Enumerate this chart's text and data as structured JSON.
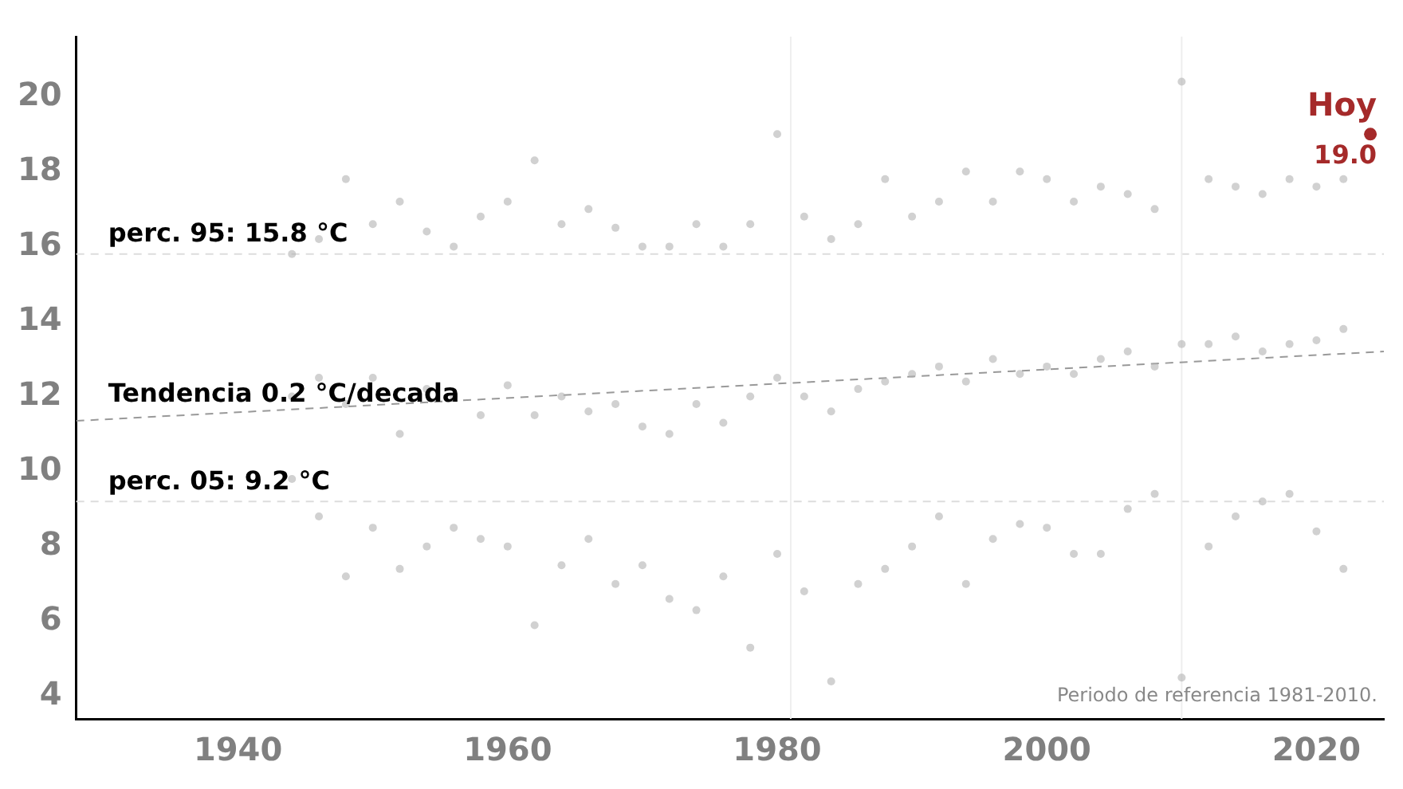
{
  "chart_data": {
    "type": "scatter",
    "xlim": [
      1928,
      2025
    ],
    "ylim": [
      3.4,
      21.6
    ],
    "xticks": [
      1940,
      1960,
      1980,
      2000,
      2020
    ],
    "yticks": [
      4,
      6,
      8,
      10,
      12,
      14,
      16,
      18,
      20
    ],
    "series": [
      {
        "color": "#b3b3b3",
        "marker": "circle",
        "x": [
          1944,
          1944,
          1944,
          1946,
          1946,
          1946,
          1948,
          1948,
          1948,
          1950,
          1950,
          1950,
          1952,
          1952,
          1952,
          1954,
          1954,
          1954,
          1956,
          1956,
          1956,
          1958,
          1958,
          1958,
          1960,
          1960,
          1960,
          1962,
          1962,
          1962,
          1964,
          1964,
          1964,
          1966,
          1966,
          1966,
          1968,
          1968,
          1968,
          1970,
          1970,
          1970,
          1972,
          1972,
          1972,
          1974,
          1974,
          1974,
          1976,
          1976,
          1976,
          1978,
          1978,
          1978,
          1980,
          1980,
          1980,
          1982,
          1982,
          1982,
          1984,
          1984,
          1984,
          1986,
          1986,
          1986,
          1988,
          1988,
          1988,
          1990,
          1990,
          1990,
          1992,
          1992,
          1992,
          1994,
          1994,
          1994,
          1996,
          1996,
          1996,
          1998,
          1998,
          1998,
          2000,
          2000,
          2000,
          2002,
          2002,
          2002,
          2004,
          2004,
          2004,
          2006,
          2006,
          2006,
          2008,
          2008,
          2008,
          2010,
          2010,
          2010,
          2012,
          2012,
          2012,
          2014,
          2014,
          2014,
          2016,
          2016,
          2016,
          2018,
          2018,
          2018,
          2020,
          2020,
          2020,
          2022,
          2022,
          2022
        ],
        "values": [
          15.8,
          12,
          9.8,
          16.2,
          12.5,
          8.8,
          17.8,
          11.8,
          7.2,
          16.6,
          12.5,
          8.5,
          17.2,
          11,
          7.4,
          16.4,
          12.2,
          8,
          16,
          12,
          8.5,
          16.8,
          11.5,
          8.2,
          17.2,
          12.3,
          8,
          18.3,
          11.5,
          5.9,
          16.6,
          12,
          7.5,
          17,
          11.6,
          8.2,
          16.5,
          11.8,
          7,
          16,
          11.2,
          7.5,
          16,
          11,
          6.6,
          16.6,
          11.8,
          6.3,
          16,
          11.3,
          7.2,
          16.6,
          12,
          5.3,
          19,
          12.5,
          7.8,
          16.8,
          12,
          6.8,
          16.2,
          11.6,
          4.4,
          16.6,
          12.2,
          7,
          17.8,
          12.4,
          7.4,
          16.8,
          12.6,
          8,
          17.2,
          12.8,
          8.8,
          18,
          12.4,
          7,
          17.2,
          13,
          8.2,
          18,
          12.6,
          8.6,
          17.8,
          12.8,
          8.5,
          17.2,
          12.6,
          7.8,
          17.6,
          13,
          7.8,
          17.4,
          13.2,
          9,
          17,
          12.8,
          9.4,
          20.4,
          13.4,
          4.5,
          17.8,
          13.4,
          8,
          17.6,
          13.6,
          8.8,
          17.4,
          13.2,
          9.2,
          17.8,
          13.4,
          9.4,
          17.6,
          13.5,
          8.4,
          17.8,
          13.8,
          7.4
        ]
      },
      {
        "type": "line",
        "name": "Tendencia 0.2 °C/decada",
        "color": "#999999",
        "line_style": "dashed",
        "marker": "none",
        "x": [
          1928,
          2025
        ],
        "values": [
          11.35,
          13.2
        ]
      },
      {
        "type": "scatter",
        "name": "Hoy",
        "color": "#a52a2a",
        "marker": "circle",
        "x": [
          2024
        ],
        "values": [
          19.0
        ],
        "value_labels": [
          "19.0"
        ]
      }
    ],
    "ref_lines": [
      {
        "axis": "y",
        "value": 15.8,
        "label": "perc. 95: 15.8 °C",
        "color": "#dddddd",
        "line_style": "dashed"
      },
      {
        "axis": "y",
        "value": 9.2,
        "label": "perc. 05: 9.2 °C",
        "color": "#dddddd",
        "line_style": "dashed"
      },
      {
        "axis": "x",
        "value": 1981,
        "color": "#eeeeee",
        "line_style": "solid"
      },
      {
        "axis": "x",
        "value": 2010,
        "color": "#eeeeee",
        "line_style": "solid"
      }
    ],
    "annotations": [
      "Periodo de referencia 1981-2010."
    ]
  }
}
